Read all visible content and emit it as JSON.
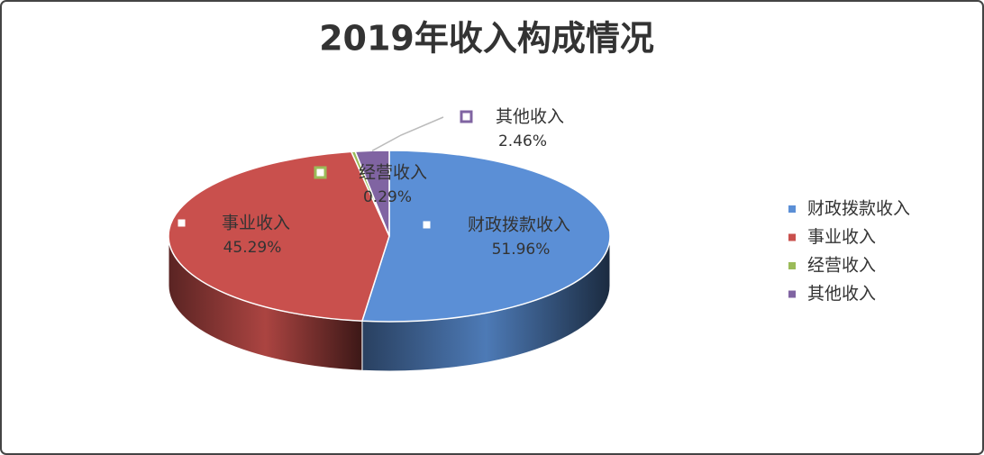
{
  "chart_data": {
    "type": "pie",
    "title": "2019年收入构成情况",
    "categories": [
      "财政拨款收入",
      "事业收入",
      "经营收入",
      "其他收入"
    ],
    "values": [
      51.96,
      45.29,
      0.29,
      2.46
    ],
    "value_labels": [
      "51.96%",
      "45.29%",
      "0.29%",
      "2.46%"
    ],
    "colors": [
      "#5b8fd6",
      "#c9504d",
      "#9bbb59",
      "#8064a2"
    ],
    "legend": "right"
  }
}
